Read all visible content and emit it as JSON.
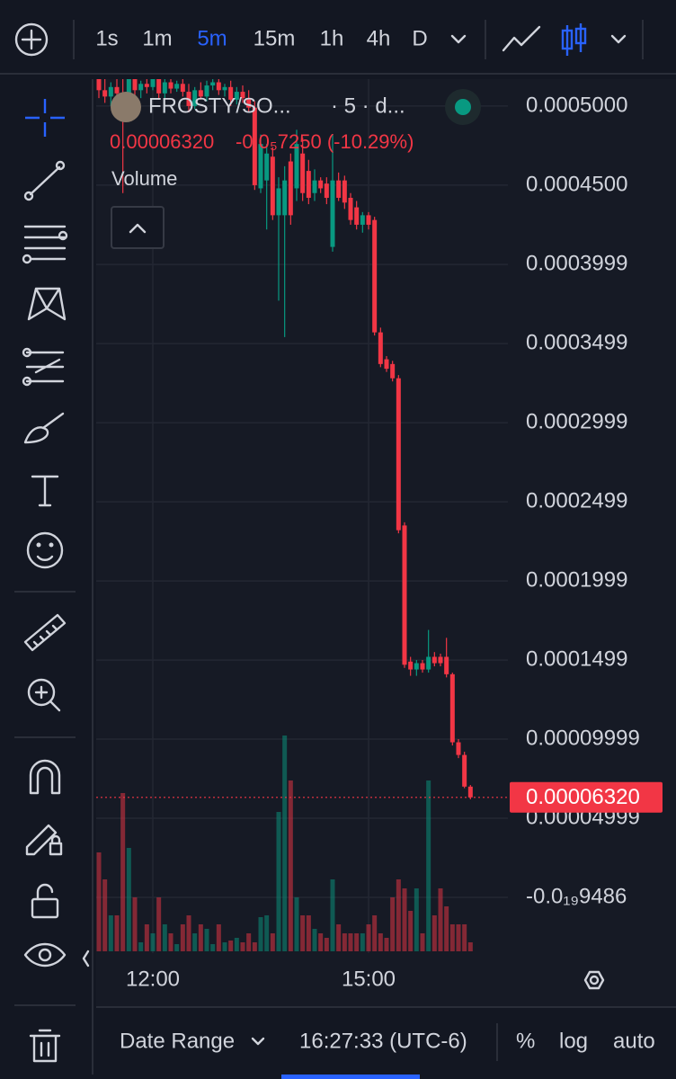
{
  "toolbar": {
    "intervals": [
      "1s",
      "1m",
      "5m",
      "15m",
      "1h",
      "4h",
      "D"
    ],
    "active": 2
  },
  "chart_data": {
    "type": "candlestick",
    "title": "FROSTY/SO...",
    "subtitle": "· 5 · d...",
    "change": "-0.0₅7250 (-10.29%)",
    "volume_label": "Volume",
    "up_color": "#089981",
    "down_color": "#f23645",
    "grid": true,
    "x": [
      675,
      680,
      685,
      690,
      695,
      700,
      705,
      710,
      715,
      720,
      725,
      730,
      735,
      740,
      745,
      750,
      755,
      760,
      765,
      770,
      775,
      780,
      785,
      790,
      795,
      800,
      805,
      810,
      815,
      820,
      825,
      830,
      835,
      840,
      845,
      850,
      855,
      860,
      865,
      870,
      875,
      880,
      885,
      890,
      895,
      900,
      905,
      910,
      915,
      920,
      925,
      930,
      935,
      940,
      945,
      950,
      955,
      960,
      965,
      970,
      975,
      980,
      985
    ],
    "open": [
      0.000518,
      0.00051,
      0.000506,
      0.000512,
      0.000508,
      0.000502,
      0.000518,
      0.00051,
      0.000514,
      0.000512,
      0.00052,
      0.000508,
      0.000515,
      0.000511,
      0.000514,
      0.000509,
      0.0005,
      0.00051,
      0.000506,
      0.000513,
      0.000515,
      0.00051,
      0.000512,
      0.000504,
      0.000509,
      0.000505,
      0.000499,
      0.000448,
      0.000453,
      0.000468,
      0.000431,
      0.000431,
      0.000465,
      0.000448,
      0.00047,
      0.000459,
      0.000445,
      0.000453,
      0.000451,
      0.000411,
      0.000453,
      0.000453,
      0.000442,
      0.000436,
      0.000425,
      0.000431,
      0.000428,
      0.000357,
      0.00034,
      0.000337,
      0.000328,
      0.000235,
      0.000149,
      0.000144,
      0.000148,
      0.000144,
      0.000152,
      0.000152,
      0.000152,
      0.000141,
      9.8e-05,
      9e-05,
      7e-05
    ],
    "high": [
      0.000525,
      0.00052,
      0.000515,
      0.00052,
      0.00053,
      0.000522,
      0.000524,
      0.000516,
      0.00052,
      0.000522,
      0.000526,
      0.000518,
      0.000519,
      0.000516,
      0.00052,
      0.000514,
      0.000512,
      0.000515,
      0.000516,
      0.000517,
      0.00052,
      0.000514,
      0.000516,
      0.000512,
      0.000513,
      0.00051,
      0.000503,
      0.000482,
      0.000476,
      0.000474,
      0.000455,
      0.000462,
      0.00047,
      0.000485,
      0.00048,
      0.000466,
      0.00046,
      0.000455,
      0.000455,
      0.000482,
      0.000458,
      0.000456,
      0.000445,
      0.00044,
      0.000433,
      0.000433,
      0.00043,
      0.00036,
      0.000342,
      0.000339,
      0.00033,
      0.000237,
      0.000152,
      0.00015,
      0.00015,
      0.000169,
      0.000155,
      0.000154,
      0.000164,
      0.000142,
      0.0001,
      9.2e-05,
      7.1e-05
    ],
    "low": [
      0.000505,
      0.000502,
      0.0005,
      0.000504,
      0.000445,
      0.000498,
      0.000506,
      0.000505,
      0.000508,
      0.00051,
      0.000504,
      0.000505,
      0.000508,
      0.000509,
      0.000506,
      0.000496,
      0.000498,
      0.000504,
      0.000503,
      0.00051,
      0.000507,
      0.000506,
      0.0005,
      0.000501,
      0.000502,
      0.000496,
      0.000447,
      0.000445,
      0.000422,
      0.000428,
      0.000377,
      0.000354,
      0.000425,
      0.00044,
      0.00044,
      0.000438,
      0.00044,
      0.000445,
      0.000438,
      0.000408,
      0.00044,
      0.000435,
      0.000425,
      0.000422,
      0.00042,
      0.000422,
      0.000355,
      0.000335,
      0.000332,
      0.000326,
      0.00023,
      0.000145,
      0.00014,
      0.00014,
      0.000142,
      0.000142,
      0.000146,
      0.000146,
      0.000139,
      9.6e-05,
      8.8e-05,
      6.9e-05,
      6.2e-05
    ],
    "close": [
      0.00051,
      0.000506,
      0.000512,
      0.000508,
      0.000502,
      0.000518,
      0.00051,
      0.000514,
      0.000512,
      0.00052,
      0.000508,
      0.000515,
      0.000511,
      0.000514,
      0.000509,
      0.0005,
      0.00051,
      0.000506,
      0.000513,
      0.000515,
      0.00051,
      0.000512,
      0.000504,
      0.000509,
      0.000505,
      0.000499,
      0.00045,
      0.000476,
      0.00047,
      0.000431,
      0.000448,
      0.000453,
      0.000431,
      0.000476,
      0.000445,
      0.000442,
      0.000453,
      0.000448,
      0.000442,
      0.000453,
      0.000442,
      0.000439,
      0.000428,
      0.000425,
      0.000431,
      0.000425,
      0.000357,
      0.000337,
      0.000334,
      0.000328,
      0.000232,
      0.000147,
      0.000144,
      0.000148,
      0.000144,
      0.000152,
      0.000148,
      0.000148,
      0.000141,
      9.8e-05,
      9e-05,
      7e-05,
      6.32e-05
    ],
    "volume": [
      110,
      80,
      40,
      40,
      176,
      115,
      60,
      10,
      30,
      20,
      60,
      30,
      20,
      8,
      30,
      40,
      20,
      30,
      25,
      8,
      30,
      10,
      12,
      15,
      10,
      20,
      10,
      38,
      40,
      20,
      155,
      240,
      190,
      60,
      40,
      40,
      25,
      20,
      15,
      80,
      30,
      20,
      20,
      20,
      20,
      30,
      40,
      20,
      15,
      60,
      80,
      70,
      45,
      70,
      20,
      190,
      40,
      70,
      50,
      30,
      30,
      30,
      10
    ],
    "xlim": [
      672.75,
      1016.25
    ],
    "xticks": [
      {
        "value": 720,
        "label": "12:00"
      },
      {
        "value": 900,
        "label": "15:00"
      }
    ],
    "ylim": [
      -3.52e-05,
      0.000517
    ],
    "yticks": [
      {
        "value": 0.0005,
        "label": "0.0005000"
      },
      {
        "value": 0.00045,
        "label": "0.0004500"
      },
      0.0003999,
      0.0003499,
      0.0002999,
      0.0002499,
      0.0001999,
      0.0001499,
      9.999e-05,
      4.999e-05,
      {
        "value": -9.486e-20,
        "label": "-0.0₁₉9486"
      }
    ],
    "last_price": {
      "value": 6.32e-05,
      "label": "0.00006320"
    }
  },
  "bottom_bar": {
    "date_range": "Date Range",
    "clock": "16:27:33 (UTC-6)",
    "percent": "%",
    "log": "log",
    "auto": "auto"
  }
}
